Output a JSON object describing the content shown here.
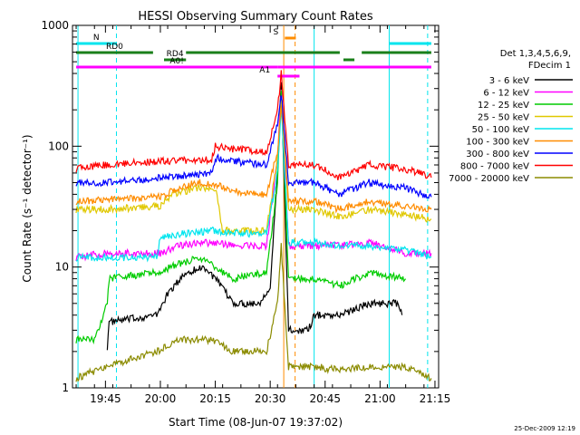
{
  "chart_data": {
    "type": "line",
    "title": "HESSI Observing Summary Count Rates",
    "xlabel": "Start Time (08-Jun-07 19:37:02)",
    "ylabel": "Count Rate (s⁻¹ detector⁻¹)",
    "yscale": "log",
    "ylim": [
      1,
      1000
    ],
    "xlim_minutes": [
      -1,
      99
    ],
    "x_ticks": [
      {
        "m": 8,
        "label": "19:45"
      },
      {
        "m": 23,
        "label": "20:00"
      },
      {
        "m": 38,
        "label": "20:15"
      },
      {
        "m": 53,
        "label": "20:30"
      },
      {
        "m": 68,
        "label": "20:45"
      },
      {
        "m": 83,
        "label": "21:00"
      },
      {
        "m": 98,
        "label": "21:15"
      }
    ],
    "y_ticks": [
      {
        "v": 1,
        "label": "1"
      },
      {
        "v": 10,
        "label": "10"
      },
      {
        "v": 100,
        "label": "100"
      },
      {
        "v": 1000,
        "label": "1000"
      }
    ],
    "legend_header": [
      "Det 1,3,4,5,6,9,",
      "FDecim 1"
    ],
    "legend_position": "right",
    "footer_date": "25-Dec-2009 12:19",
    "vertical_markers": [
      {
        "m": 0.5,
        "color": "#00e5ee",
        "style": "solid"
      },
      {
        "m": 11,
        "color": "#00e5ee",
        "style": "dashed"
      },
      {
        "m": 65,
        "color": "#00e5ee",
        "style": "solid"
      },
      {
        "m": 85.5,
        "color": "#00e5ee",
        "style": "solid"
      },
      {
        "m": 96,
        "color": "#00e5ee",
        "style": "dashed"
      },
      {
        "m": 56.7,
        "color": "#ff8c00",
        "style": "solid"
      },
      {
        "m": 59.8,
        "color": "#ff8c00",
        "style": "dashed"
      }
    ],
    "flag_bars": [
      {
        "label": "N",
        "color": "#00e5ee",
        "segments": [
          [
            0,
            11
          ],
          [
            85.5,
            97
          ]
        ],
        "level": 1.0
      },
      {
        "label": "S",
        "color": "#ff8c00",
        "segments": [
          [
            57,
            60
          ]
        ],
        "level": 0.5
      },
      {
        "label": "RD0",
        "color": "#1a7f1a",
        "segments": [
          [
            0,
            21
          ],
          [
            30,
            72
          ],
          [
            78,
            97
          ]
        ],
        "level": 2.0
      },
      {
        "label": "RD4",
        "color": "#1a7f1a",
        "segments": [
          [
            24,
            30
          ],
          [
            73,
            76
          ]
        ],
        "level": 3.0
      },
      {
        "label": "A0!",
        "color": "#ff00ff",
        "segments": [
          [
            0,
            55
          ],
          [
            55,
            97
          ]
        ],
        "level": 3.8
      },
      {
        "label": "A1",
        "color": "#ff00ff",
        "segments": [
          [
            55,
            61
          ]
        ],
        "level": 4.8
      }
    ],
    "series": [
      {
        "name": "3 - 6 keV",
        "color": "#000000",
        "points": [
          [
            8.5,
            2.2
          ],
          [
            9,
            3.5
          ],
          [
            22,
            4
          ],
          [
            25,
            6
          ],
          [
            30,
            9
          ],
          [
            35,
            10
          ],
          [
            38,
            8
          ],
          [
            43,
            5
          ],
          [
            50,
            5
          ],
          [
            53,
            7
          ],
          [
            55,
            60
          ],
          [
            56,
            350
          ],
          [
            58,
            3
          ],
          [
            62,
            3
          ],
          [
            64,
            3.2
          ],
          [
            65,
            4
          ],
          [
            72,
            4
          ],
          [
            80,
            5
          ],
          [
            88,
            5
          ],
          [
            89,
            4
          ]
        ]
      },
      {
        "name": "6 - 12 keV",
        "color": "#ff00ff",
        "points": [
          [
            0,
            12
          ],
          [
            8,
            13
          ],
          [
            23,
            13
          ],
          [
            28,
            15
          ],
          [
            37,
            16
          ],
          [
            43,
            15
          ],
          [
            52,
            15
          ],
          [
            55,
            80
          ],
          [
            56,
            300
          ],
          [
            58,
            15
          ],
          [
            65,
            15
          ],
          [
            72,
            15
          ],
          [
            80,
            16
          ],
          [
            90,
            13
          ],
          [
            97,
            13
          ]
        ]
      },
      {
        "name": "12 - 25 keV",
        "color": "#00cc00",
        "points": [
          [
            0,
            2.5
          ],
          [
            5,
            2.5
          ],
          [
            8.5,
            5
          ],
          [
            9,
            8
          ],
          [
            22,
            9
          ],
          [
            26,
            10
          ],
          [
            33,
            12
          ],
          [
            38,
            10
          ],
          [
            43,
            8
          ],
          [
            52,
            9
          ],
          [
            55,
            50
          ],
          [
            56,
            300
          ],
          [
            58,
            8
          ],
          [
            65,
            8
          ],
          [
            72,
            7
          ],
          [
            80,
            9
          ],
          [
            90,
            8
          ]
        ]
      },
      {
        "name": "25 - 50 keV",
        "color": "#e0c800",
        "points": [
          [
            0,
            30
          ],
          [
            8,
            30
          ],
          [
            23,
            32
          ],
          [
            26,
            40
          ],
          [
            33,
            45
          ],
          [
            38,
            45
          ],
          [
            40,
            20
          ],
          [
            43,
            20
          ],
          [
            52,
            20
          ],
          [
            55,
            80
          ],
          [
            56,
            250
          ],
          [
            58,
            30
          ],
          [
            65,
            30
          ],
          [
            72,
            26
          ],
          [
            80,
            30
          ],
          [
            90,
            27
          ],
          [
            97,
            25
          ]
        ]
      },
      {
        "name": "50 - 100 keV",
        "color": "#00e5ee",
        "points": [
          [
            0,
            12
          ],
          [
            8,
            12
          ],
          [
            22,
            12
          ],
          [
            23,
            18
          ],
          [
            37,
            20
          ],
          [
            43,
            19
          ],
          [
            52,
            19
          ],
          [
            55,
            60
          ],
          [
            56,
            220
          ],
          [
            58,
            16
          ],
          [
            65,
            16
          ],
          [
            72,
            15
          ],
          [
            80,
            15
          ],
          [
            90,
            14
          ],
          [
            97,
            12
          ]
        ]
      },
      {
        "name": "100 - 300 keV",
        "color": "#ff8c00",
        "points": [
          [
            0,
            35
          ],
          [
            8,
            36
          ],
          [
            23,
            38
          ],
          [
            28,
            45
          ],
          [
            33,
            50
          ],
          [
            38,
            48
          ],
          [
            43,
            42
          ],
          [
            52,
            40
          ],
          [
            55,
            90
          ],
          [
            56,
            230
          ],
          [
            58,
            35
          ],
          [
            65,
            35
          ],
          [
            72,
            30
          ],
          [
            80,
            35
          ],
          [
            90,
            32
          ],
          [
            97,
            30
          ]
        ]
      },
      {
        "name": "300 - 800 keV",
        "color": "#0000ff",
        "points": [
          [
            0,
            50
          ],
          [
            8,
            50
          ],
          [
            23,
            55
          ],
          [
            37,
            60
          ],
          [
            38,
            80
          ],
          [
            43,
            75
          ],
          [
            52,
            70
          ],
          [
            55,
            150
          ],
          [
            56,
            280
          ],
          [
            58,
            50
          ],
          [
            65,
            50
          ],
          [
            72,
            40
          ],
          [
            80,
            50
          ],
          [
            90,
            45
          ],
          [
            97,
            38
          ]
        ]
      },
      {
        "name": "800 - 7000 keV",
        "color": "#ff0000",
        "points": [
          [
            0,
            65
          ],
          [
            8,
            70
          ],
          [
            23,
            75
          ],
          [
            37,
            78
          ],
          [
            38,
            100
          ],
          [
            43,
            95
          ],
          [
            52,
            90
          ],
          [
            55,
            200
          ],
          [
            56,
            400
          ],
          [
            58,
            70
          ],
          [
            65,
            70
          ],
          [
            72,
            55
          ],
          [
            80,
            70
          ],
          [
            90,
            65
          ],
          [
            97,
            55
          ]
        ]
      },
      {
        "name": "7000 - 20000 keV",
        "color": "#8b8b00",
        "points": [
          [
            0,
            1.2
          ],
          [
            8,
            1.5
          ],
          [
            22,
            2
          ],
          [
            28,
            2.5
          ],
          [
            37,
            2.5
          ],
          [
            43,
            2
          ],
          [
            52,
            2
          ],
          [
            55,
            5
          ],
          [
            56,
            15
          ],
          [
            58,
            1.5
          ],
          [
            65,
            1.5
          ],
          [
            72,
            1.4
          ],
          [
            80,
            1.5
          ],
          [
            90,
            1.5
          ],
          [
            97,
            1.2
          ]
        ]
      }
    ]
  }
}
